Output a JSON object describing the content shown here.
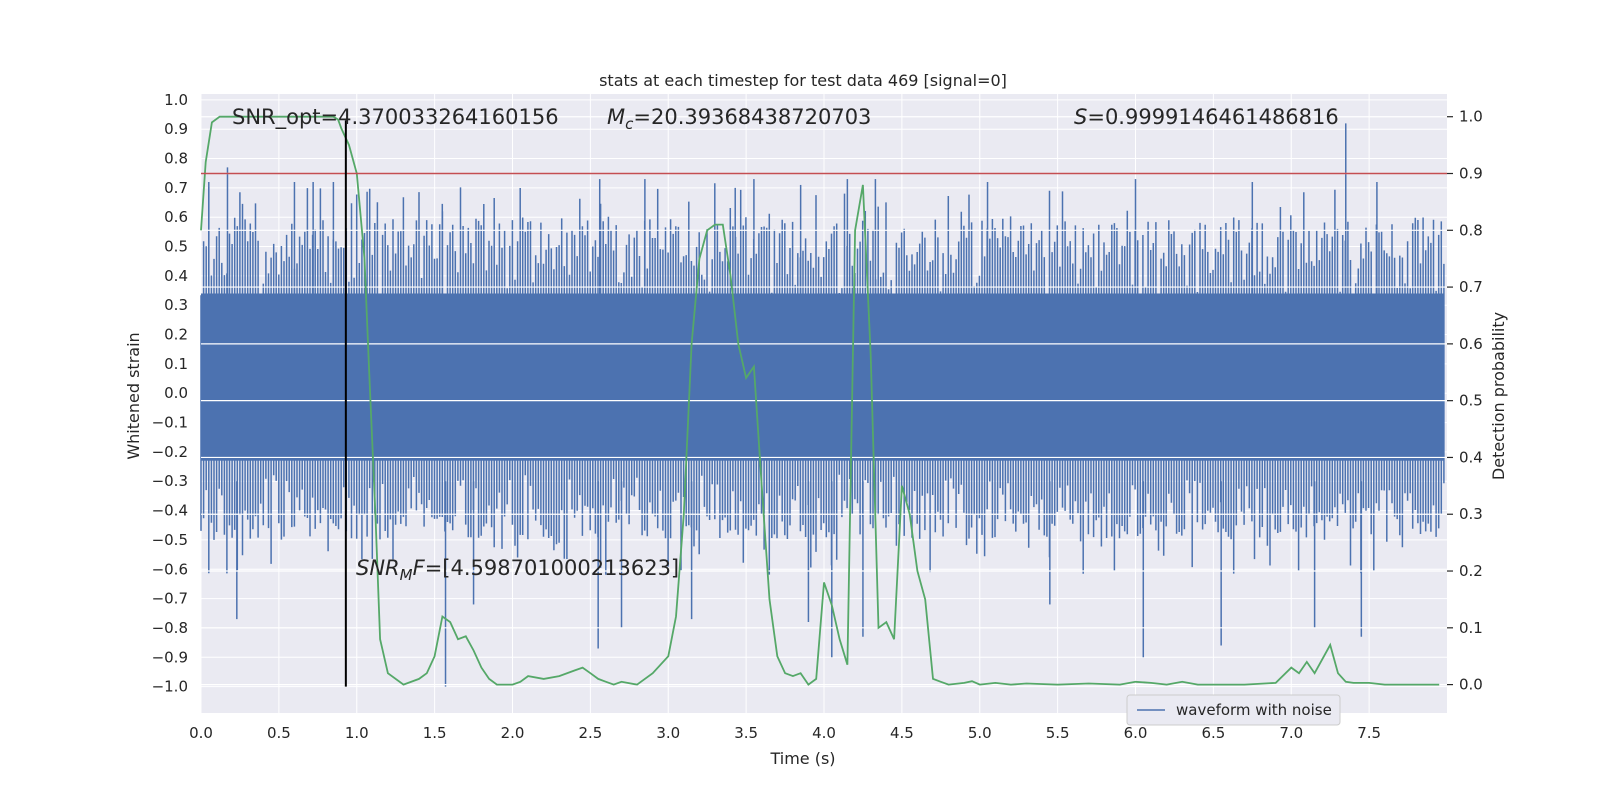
{
  "chart_data": {
    "type": "line",
    "title": "stats at each timestep for test data 469 [signal=0]",
    "xlabel": "Time (s)",
    "ylabel_left": "Whitened strain",
    "ylabel_right": "Detection probability",
    "xlim": [
      0,
      8
    ],
    "ylim_left": [
      -1.09,
      1.02
    ],
    "ylim_right": [
      -0.05,
      1.04
    ],
    "x_ticks": [
      0,
      0.5,
      1,
      1.5,
      2,
      2.5,
      3,
      3.5,
      4,
      4.5,
      5,
      5.5,
      6,
      6.5,
      7,
      7.5
    ],
    "x_tick_labels": [
      "0.0",
      "0.5",
      "1.0",
      "1.5",
      "2.0",
      "2.5",
      "3.0",
      "3.5",
      "4.0",
      "4.5",
      "5.0",
      "5.5",
      "6.0",
      "6.5",
      "7.0",
      "7.5"
    ],
    "y_left_ticks": [
      1,
      0.9,
      0.8,
      0.7,
      0.6,
      0.5,
      0.4,
      0.3,
      0.2,
      0.1,
      0,
      -0.1,
      -0.2,
      -0.3,
      -0.4,
      -0.5,
      -0.6,
      -0.7,
      -0.8,
      -0.9,
      -1
    ],
    "y_left_tick_labels": [
      "1.0",
      "0.9",
      "0.8",
      "0.7",
      "0.6",
      "0.5",
      "0.4",
      "0.3",
      "0.2",
      "0.1",
      "0.0",
      "−0.1",
      "−0.2",
      "−0.3",
      "−0.4",
      "−0.5",
      "−0.6",
      "−0.7",
      "−0.8",
      "−0.9",
      "−1.0"
    ],
    "y_right_ticks": [
      1,
      0.9,
      0.8,
      0.7,
      0.6,
      0.5,
      0.4,
      0.3,
      0.2,
      0.1,
      0
    ],
    "y_right_tick_labels": [
      "1.0",
      "0.9",
      "0.8",
      "0.7",
      "0.6",
      "0.5",
      "0.4",
      "0.3",
      "0.2",
      "0.1",
      "0.0"
    ],
    "waveform": {
      "name": "waveform with noise",
      "color": "#4c72b0",
      "sample_rate_hz": 2048,
      "duration_s": 7.98,
      "dense_band": [
        -0.23,
        0.34
      ],
      "envelope_typical": [
        -0.5,
        0.6
      ],
      "peaks_high": [
        [
          0.05,
          0.72
        ],
        [
          0.17,
          0.77
        ],
        [
          0.6,
          0.72
        ],
        [
          0.72,
          0.72
        ],
        [
          0.85,
          0.72
        ],
        [
          1.55,
          0.62
        ],
        [
          2.56,
          0.73
        ],
        [
          2.85,
          0.73
        ],
        [
          3.43,
          0.7
        ],
        [
          3.55,
          0.73
        ],
        [
          3.85,
          0.71
        ],
        [
          4.15,
          0.73
        ],
        [
          4.33,
          0.73
        ],
        [
          5.05,
          0.72
        ],
        [
          6.0,
          0.73
        ],
        [
          6.75,
          0.72
        ],
        [
          7.35,
          0.92
        ],
        [
          7.55,
          0.72
        ]
      ],
      "peaks_low": [
        [
          0.23,
          -0.77
        ],
        [
          1.57,
          -1.0
        ],
        [
          1.75,
          -0.72
        ],
        [
          2.55,
          -0.87
        ],
        [
          2.7,
          -0.8
        ],
        [
          3.15,
          -0.77
        ],
        [
          3.9,
          -0.78
        ],
        [
          4.05,
          -0.9
        ],
        [
          4.25,
          -0.83
        ],
        [
          5.45,
          -0.72
        ],
        [
          6.05,
          -0.9
        ],
        [
          6.55,
          -0.86
        ],
        [
          7.15,
          -0.8
        ],
        [
          7.45,
          -0.83
        ]
      ]
    },
    "detection_probability": {
      "color": "#55a868",
      "x": [
        0.0,
        0.03,
        0.07,
        0.12,
        0.2,
        0.3,
        0.45,
        0.6,
        0.75,
        0.85,
        0.88,
        0.9,
        0.95,
        1.0,
        1.05,
        1.08,
        1.12,
        1.15,
        1.2,
        1.3,
        1.4,
        1.45,
        1.5,
        1.55,
        1.6,
        1.65,
        1.7,
        1.75,
        1.8,
        1.85,
        1.9,
        1.95,
        2.0,
        2.05,
        2.1,
        2.2,
        2.3,
        2.4,
        2.45,
        2.5,
        2.55,
        2.6,
        2.65,
        2.7,
        2.8,
        2.9,
        3.0,
        3.05,
        3.1,
        3.15,
        3.2,
        3.25,
        3.3,
        3.35,
        3.4,
        3.45,
        3.5,
        3.55,
        3.6,
        3.65,
        3.7,
        3.75,
        3.8,
        3.85,
        3.9,
        3.95,
        4.0,
        4.05,
        4.1,
        4.15,
        4.2,
        4.25,
        4.3,
        4.35,
        4.4,
        4.45,
        4.5,
        4.55,
        4.6,
        4.65,
        4.7,
        4.75,
        4.8,
        4.9,
        4.95,
        5.0,
        5.1,
        5.2,
        5.3,
        5.5,
        5.7,
        5.9,
        6.0,
        6.1,
        6.2,
        6.3,
        6.4,
        6.5,
        6.7,
        6.9,
        7.0,
        7.05,
        7.1,
        7.15,
        7.25,
        7.3,
        7.35,
        7.4,
        7.5,
        7.6,
        7.7,
        7.8,
        7.95
      ],
      "y": [
        0.8,
        0.92,
        0.99,
        1.0,
        1.0,
        1.0,
        1.0,
        1.0,
        1.0,
        1.0,
        0.995,
        0.98,
        0.95,
        0.9,
        0.75,
        0.55,
        0.3,
        0.08,
        0.02,
        0.0,
        0.01,
        0.02,
        0.05,
        0.12,
        0.11,
        0.08,
        0.085,
        0.06,
        0.03,
        0.01,
        0.0,
        0.0,
        0.0,
        0.005,
        0.015,
        0.01,
        0.015,
        0.025,
        0.03,
        0.02,
        0.01,
        0.005,
        0.0,
        0.005,
        0.0,
        0.02,
        0.05,
        0.12,
        0.3,
        0.6,
        0.75,
        0.8,
        0.81,
        0.81,
        0.72,
        0.6,
        0.54,
        0.56,
        0.35,
        0.15,
        0.05,
        0.02,
        0.015,
        0.02,
        0.0,
        0.01,
        0.18,
        0.14,
        0.08,
        0.035,
        0.8,
        0.88,
        0.58,
        0.1,
        0.11,
        0.08,
        0.35,
        0.3,
        0.2,
        0.15,
        0.01,
        0.005,
        0.0,
        0.003,
        0.006,
        0.0,
        0.003,
        0.0,
        0.002,
        0.0,
        0.002,
        0.0,
        0.005,
        0.003,
        0.0,
        0.005,
        0.0,
        0.0,
        0.0,
        0.003,
        0.03,
        0.02,
        0.04,
        0.02,
        0.07,
        0.02,
        0.005,
        0.003,
        0.003,
        0.0,
        0.0,
        0.0,
        0.0
      ]
    },
    "threshold": {
      "value": 0.9,
      "axis": "right",
      "color": "#c44e52"
    },
    "marker_line": {
      "x": 0.93,
      "from": -1.0,
      "to": 0.93,
      "color": "#000000"
    },
    "annotations": {
      "snr_opt": "SNR_opt=4.370033264160156",
      "mc_symbol": "M",
      "mc_sub": "c",
      "mc_value": "=20.39368438720703",
      "s_symbol": "S",
      "s_value": "=0.9999146461486816",
      "snr_mf_symbol": "SNR",
      "snr_mf_sub": "M",
      "snr_mf_f": "F",
      "snr_mf_value": "=[4.598701000213623]"
    },
    "legend": {
      "position": "lower-right",
      "entries": [
        "waveform with noise"
      ]
    },
    "grid": true,
    "style": {
      "bg": "#eaeaf2",
      "grid": "#ffffff"
    }
  }
}
